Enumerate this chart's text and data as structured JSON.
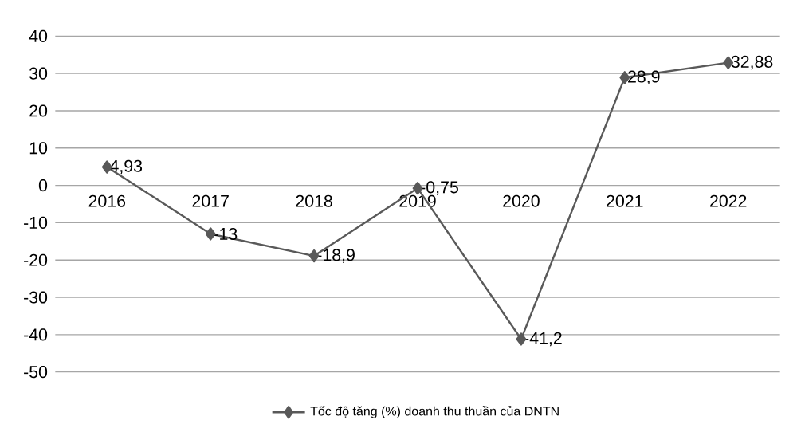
{
  "chart_data": {
    "type": "line",
    "categories": [
      "2016",
      "2017",
      "2018",
      "2019",
      "2020",
      "2021",
      "2022"
    ],
    "series": [
      {
        "name": "Tốc độ tăng (%) doanh thu thuần của DNTN",
        "color": "#595959",
        "values": [
          4.93,
          -13,
          -18.9,
          -0.75,
          -41.2,
          28.9,
          32.88
        ],
        "value_labels": [
          "4,93",
          "-13",
          "-18,9",
          "-0,75",
          "-41,2",
          "28,9",
          "32,88"
        ]
      }
    ],
    "ylim": [
      -50,
      40
    ],
    "yticks": [
      -50,
      -40,
      -30,
      -20,
      -10,
      0,
      10,
      20,
      30,
      40
    ],
    "grid": "y",
    "legend": "bottom",
    "marker": "diamond",
    "line_style": "solid"
  }
}
